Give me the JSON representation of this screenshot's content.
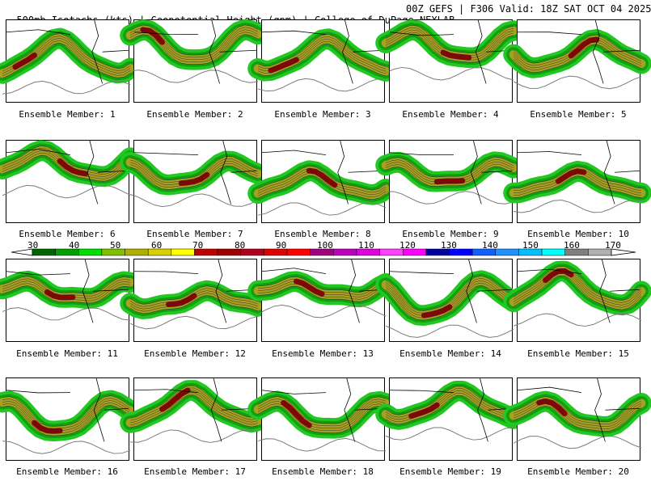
{
  "header": {
    "title_left": "500mb Isotachs (kts) | Geopotential Height (gpm) | College of DuPage NEXLAB",
    "title_right": "00Z GEFS | F306 Valid: 18Z SAT OCT 04 2025"
  },
  "panels": [
    {
      "caption": "Ensemble Member: 1"
    },
    {
      "caption": "Ensemble Member: 2"
    },
    {
      "caption": "Ensemble Member: 3"
    },
    {
      "caption": "Ensemble Member: 4"
    },
    {
      "caption": "Ensemble Member: 5"
    },
    {
      "caption": "Ensemble Member: 6"
    },
    {
      "caption": "Ensemble Member: 7"
    },
    {
      "caption": "Ensemble Member: 8"
    },
    {
      "caption": "Ensemble Member: 9"
    },
    {
      "caption": "Ensemble Member: 10"
    },
    {
      "caption": "Ensemble Member: 11"
    },
    {
      "caption": "Ensemble Member: 12"
    },
    {
      "caption": "Ensemble Member: 13"
    },
    {
      "caption": "Ensemble Member: 14"
    },
    {
      "caption": "Ensemble Member: 15"
    },
    {
      "caption": "Ensemble Member: 16"
    },
    {
      "caption": "Ensemble Member: 17"
    },
    {
      "caption": "Ensemble Member: 18"
    },
    {
      "caption": "Ensemble Member: 19"
    },
    {
      "caption": "Ensemble Member: 20"
    }
  ],
  "colorbar": {
    "labels": [
      "30",
      "40",
      "50",
      "60",
      "70",
      "80",
      "90",
      "100",
      "110",
      "120",
      "130",
      "140",
      "150",
      "160",
      "170"
    ],
    "colors": [
      "#006400",
      "#00a000",
      "#00e000",
      "#80c000",
      "#b0b000",
      "#d8d000",
      "#ffff00",
      "#c00000",
      "#a00000",
      "#b00020",
      "#e00000",
      "#ff0000",
      "#a00080",
      "#c000c0",
      "#e000e0",
      "#ff40ff",
      "#ff00ff",
      "#0000a0",
      "#0000ff",
      "#1060ff",
      "#2090ff",
      "#00c0ff",
      "#00ffff",
      "#808080",
      "#b0b0b0"
    ]
  },
  "jet_colors": {
    "outer": "#22c722",
    "mid": "#0fa00f",
    "core": "#a8a020",
    "max": "#8b0000",
    "height": "#7a7a7a"
  }
}
